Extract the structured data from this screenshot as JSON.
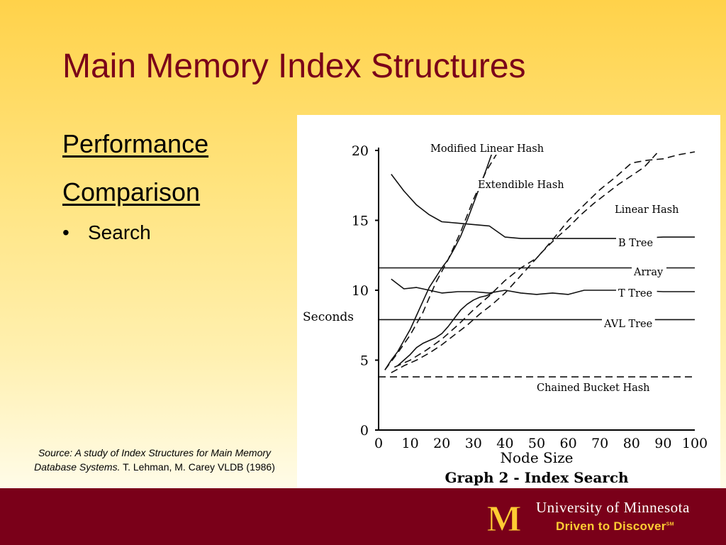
{
  "slide": {
    "title": "Main Memory Index Structures",
    "heading_line1": "Performance",
    "heading_line2": "Comparison",
    "bullet": "Search",
    "source_italic_1": "Source: A study of Index Structures for Main Memory",
    "source_italic_2": "Database Systems.",
    "source_plain": " T. Lehman, M. Carey VLDB (1986)"
  },
  "footer": {
    "university": "University of Minnesota",
    "tagline": "Driven to Discover",
    "tagline_mark": "SM",
    "logo_text": "M",
    "colors": {
      "maroon": "#7a0019",
      "gold": "#ffcc33"
    }
  },
  "chart_data": {
    "type": "line",
    "title": "Graph 2 - Index Search",
    "xlabel": "Node Size",
    "ylabel": "Seconds",
    "xlim": [
      0,
      100
    ],
    "ylim": [
      0,
      20
    ],
    "x_ticks": [
      0,
      10,
      20,
      30,
      40,
      50,
      60,
      70,
      80,
      90,
      100
    ],
    "y_ticks": [
      0,
      5,
      10,
      15,
      20
    ],
    "grid": false,
    "series": [
      {
        "name": "Modified Linear Hash",
        "style": "dashed",
        "x": [
          2,
          6,
          10,
          14,
          18,
          22,
          26,
          30,
          34,
          38
        ],
        "y": [
          4.3,
          5.5,
          6.8,
          8.4,
          10.5,
          12.2,
          14.2,
          16.5,
          18.5,
          20
        ]
      },
      {
        "name": "Extendible Hash",
        "style": "dashed",
        "x": [
          4,
          8,
          12,
          16,
          20,
          24,
          28,
          32,
          36,
          40,
          44,
          48,
          52,
          56,
          60,
          64,
          68,
          72,
          76,
          80,
          84,
          88
        ],
        "y": [
          4.1,
          4.6,
          5.0,
          5.5,
          6.1,
          6.8,
          7.5,
          8.3,
          9.0,
          9.8,
          10.8,
          11.8,
          12.8,
          13.7,
          14.5,
          15.4,
          16.2,
          16.9,
          17.6,
          18.2,
          18.8,
          19.8
        ]
      },
      {
        "name": "Linear Hash",
        "style": "dashed",
        "x": [
          5,
          10,
          15,
          20,
          25,
          30,
          35,
          40,
          45,
          50,
          55,
          60,
          65,
          70,
          75,
          80,
          85,
          90,
          95,
          100
        ],
        "y": [
          4.5,
          5.0,
          5.7,
          6.5,
          7.5,
          8.6,
          9.6,
          10.7,
          11.6,
          12.3,
          13.6,
          15.0,
          16.1,
          17.2,
          18.1,
          19.1,
          19.3,
          19.4,
          19.7,
          19.9
        ]
      },
      {
        "name": "B Tree",
        "style": "solid",
        "x": [
          4,
          8,
          12,
          16,
          20,
          25,
          30,
          35,
          40,
          45,
          50,
          60,
          70,
          80,
          90,
          100
        ],
        "y": [
          18.3,
          17.1,
          16.1,
          15.4,
          14.9,
          14.8,
          14.7,
          14.6,
          13.8,
          13.7,
          13.7,
          13.7,
          13.7,
          13.7,
          13.8,
          13.8
        ]
      },
      {
        "name": "Array",
        "style": "solid",
        "x": [
          0,
          100
        ],
        "y": [
          11.6,
          11.6
        ]
      },
      {
        "name": "T Tree",
        "style": "solid",
        "x": [
          4,
          8,
          12,
          16,
          20,
          25,
          30,
          35,
          40,
          45,
          50,
          55,
          60,
          65,
          70,
          80,
          90,
          100
        ],
        "y": [
          10.8,
          10.1,
          10.2,
          10.0,
          9.8,
          9.9,
          9.9,
          9.8,
          10.0,
          9.8,
          9.7,
          9.8,
          9.7,
          10.0,
          10.0,
          10.0,
          9.9,
          9.9
        ]
      },
      {
        "name": "AVL Tree",
        "style": "solid",
        "x": [
          0,
          100
        ],
        "y": [
          7.9,
          7.9
        ]
      },
      {
        "name": "Chained Bucket Hash",
        "style": "dashed",
        "x": [
          0,
          100
        ],
        "y": [
          3.8,
          3.8
        ]
      },
      {
        "name": "",
        "style": "solid",
        "x": [
          2,
          4,
          6,
          8,
          10,
          12,
          14,
          16,
          18,
          20,
          22,
          24,
          26,
          28,
          30,
          32,
          34,
          36
        ],
        "y": [
          4.3,
          5.0,
          5.6,
          6.4,
          7.2,
          8.2,
          9.2,
          10.2,
          10.9,
          11.6,
          12.2,
          13.0,
          13.9,
          15.0,
          16.2,
          17.4,
          18.6,
          19.9
        ]
      },
      {
        "name": "",
        "style": "solid",
        "x": [
          6,
          8,
          10,
          12,
          14,
          16,
          18,
          20,
          22,
          24,
          26,
          28,
          30,
          32,
          34,
          36
        ],
        "y": [
          4.6,
          5.0,
          5.4,
          5.9,
          6.2,
          6.4,
          6.6,
          6.9,
          7.4,
          8.0,
          8.6,
          9.0,
          9.3,
          9.5,
          9.6,
          9.8
        ]
      }
    ],
    "labels": [
      "Modified Linear Hash",
      "Extendible Hash",
      "Linear Hash",
      "B Tree",
      "Array",
      "T Tree",
      "AVL Tree",
      "Chained Bucket Hash"
    ]
  }
}
